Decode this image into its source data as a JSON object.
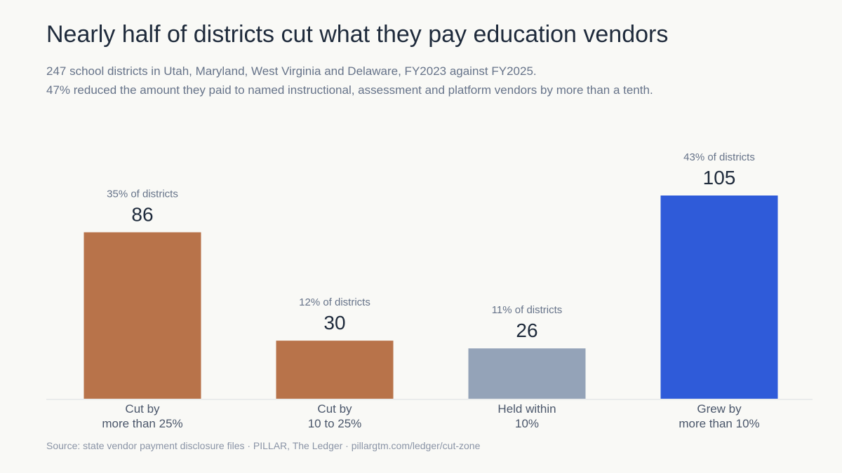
{
  "title": "Nearly half of districts cut what they pay education vendors",
  "subtitle_line1": "247 school districts in Utah, Maryland, West Virginia and Delaware, FY2023 against FY2025.",
  "subtitle_line2": "47% reduced the amount they paid to named instructional, assessment and platform vendors by more than a tenth.",
  "source": "Source: state vendor payment disclosure files  ·  PILLAR, The Ledger  ·  pillargtm.com/ledger/cut-zone",
  "chart_data": {
    "type": "bar",
    "categories": [
      [
        "Cut by",
        "more than 25%"
      ],
      [
        "Cut by",
        "10 to 25%"
      ],
      [
        "Held within",
        "10%"
      ],
      [
        "Grew by",
        "more than 10%"
      ]
    ],
    "values": [
      86,
      30,
      26,
      105
    ],
    "share_labels": [
      "35% of districts",
      "12% of districts",
      "11% of districts",
      "43% of districts"
    ],
    "colors": [
      "#b8734a",
      "#b8734a",
      "#94a3b8",
      "#2f5bd9"
    ],
    "ylim": [
      0,
      105
    ],
    "grid": false,
    "legend": "none"
  }
}
